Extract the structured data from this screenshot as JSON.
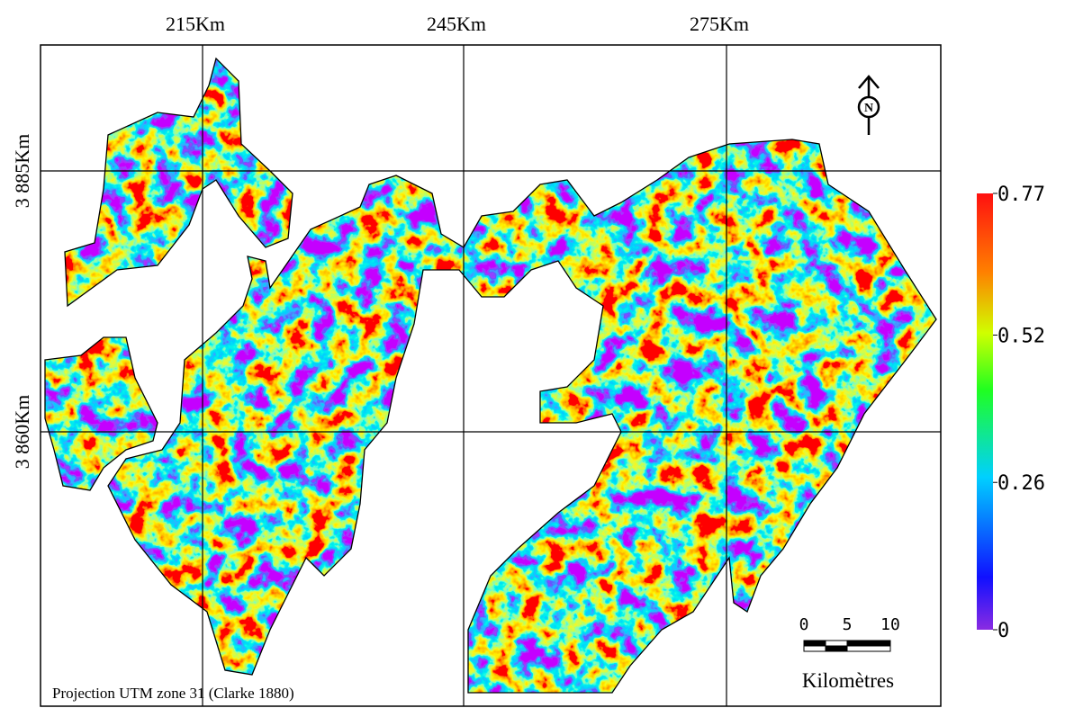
{
  "grid": {
    "x_labels": [
      "215Km",
      "245Km",
      "275Km"
    ],
    "y_labels": [
      "3 885Km",
      "3 860Km"
    ]
  },
  "colorbar": {
    "min": 0,
    "max": 0.77,
    "ticks": [
      0.77,
      0.52,
      0.26,
      0
    ]
  },
  "north": "N",
  "scale_bar": {
    "labels": [
      "0",
      "5",
      "10"
    ],
    "unit": "Kilomètres"
  },
  "projection": "Projection UTM zone 31 (Clarke 1880)"
}
